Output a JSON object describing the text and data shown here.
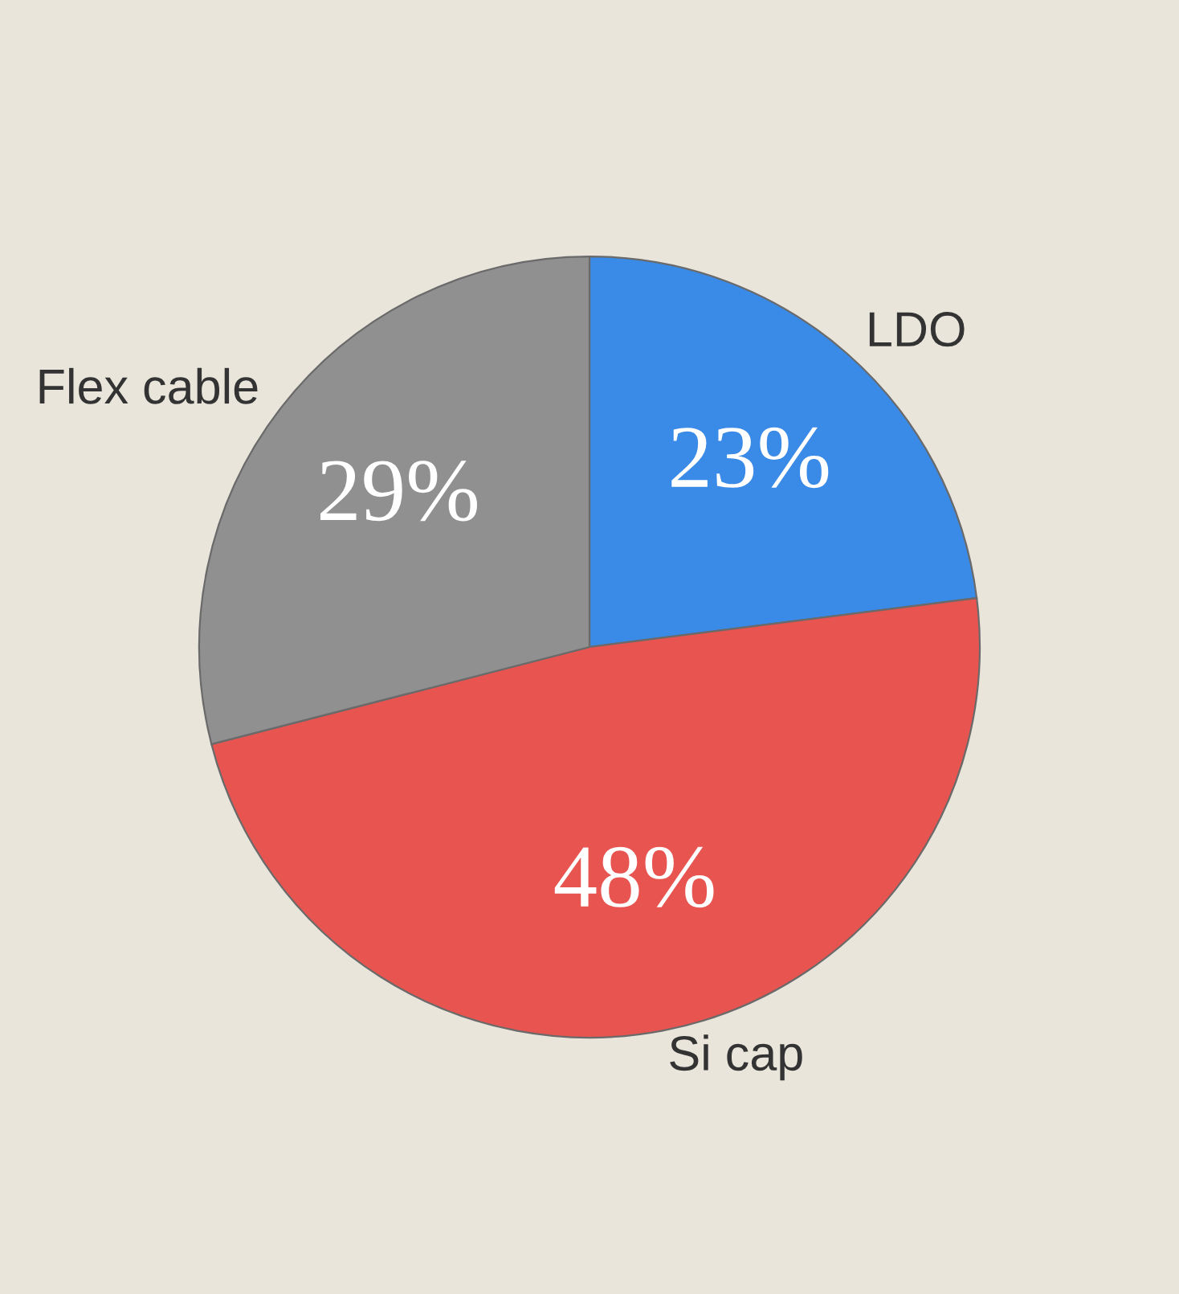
{
  "chart_data": {
    "type": "pie",
    "categories": [
      "LDO",
      "Si cap",
      "Flex cable"
    ],
    "values": [
      23,
      48,
      29
    ],
    "colors": [
      "#3a8ae8",
      "#e85450",
      "#909090"
    ],
    "value_labels": [
      "23%",
      "48%",
      "29%"
    ]
  }
}
